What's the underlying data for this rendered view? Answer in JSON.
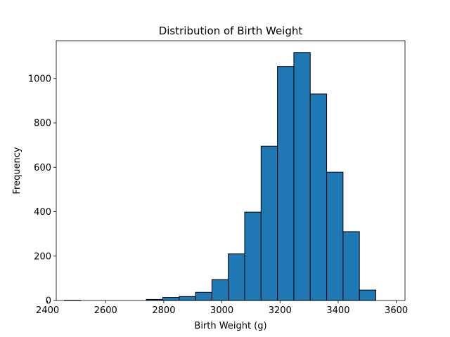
{
  "chart_data": {
    "type": "bar",
    "title": "Distribution of Birth Weight",
    "xlabel": "Birth Weight (g)",
    "ylabel": "Frequency",
    "xlim": [
      2430,
      3630
    ],
    "ylim": [
      0,
      1170
    ],
    "xticks": [
      2400,
      2600,
      2800,
      3000,
      3200,
      3400,
      3600
    ],
    "yticks": [
      0,
      200,
      400,
      600,
      800,
      1000
    ],
    "bin_edges": [
      2458,
      2514.4,
      2570.8,
      2627.2,
      2683.6,
      2740,
      2796.4,
      2852.8,
      2909.2,
      2965.6,
      3022,
      3078.4,
      3134.8,
      3191.2,
      3247.6,
      3304,
      3360.4,
      3416.8,
      3473.2,
      3529.6,
      3586
    ],
    "values": [
      1,
      0,
      0,
      0,
      0,
      5,
      14,
      18,
      37,
      94,
      210,
      398,
      695,
      1054,
      1117,
      930,
      578,
      310,
      47,
      0
    ],
    "grid": false,
    "colors": {
      "bar_fill": "#1f77b4",
      "bar_edge": "#000000",
      "axes": "#000000"
    }
  }
}
